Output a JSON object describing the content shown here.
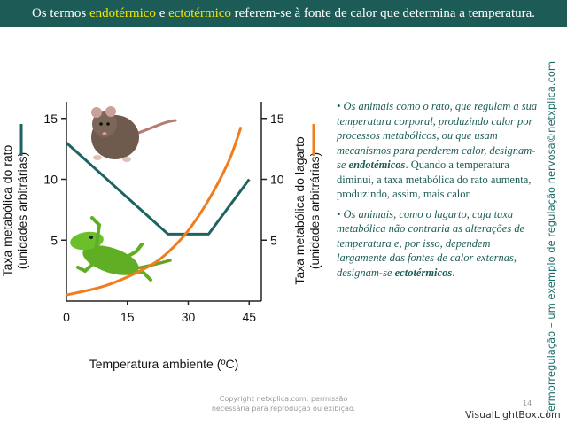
{
  "header": {
    "part1": "Os termos ",
    "term1": "endotérmico",
    "part2": " e ",
    "term2": "ectotérmico",
    "part3": " referem-se à fonte de calor que determina a temperatura."
  },
  "side_title": "Termorregulação – um exemplo de regulação nervosa©netxplica.com",
  "chart_data": {
    "type": "line",
    "xlabel": "Temperatura ambiente (ºC)",
    "x_ticks": [
      "0",
      "15",
      "30",
      "45"
    ],
    "xlim": [
      0,
      48
    ],
    "ylabel_left_1": "Taxa metabólica do rato",
    "ylabel_left_2": "(unidades arbitrárias)",
    "ylabel_right_1": "Taxa metabólica do lagarto",
    "ylabel_right_2": "(unidades arbitrárias)",
    "y_ticks_left": [
      "15",
      "10",
      "5"
    ],
    "y_ticks_right": [
      "15",
      "10",
      "5"
    ],
    "ylim": [
      0,
      16
    ],
    "series": [
      {
        "axis": "left",
        "color": "#1d6460",
        "x": [
          0,
          25,
          35,
          45
        ],
        "y": [
          13,
          5.5,
          5.5,
          10
        ]
      },
      {
        "axis": "right",
        "color": "#f07d1e",
        "x": [
          0,
          10,
          20,
          25,
          30,
          35,
          40,
          43
        ],
        "y": [
          0.5,
          1.3,
          2.8,
          4.0,
          5.8,
          8.3,
          11.5,
          14.3
        ]
      }
    ]
  },
  "text": {
    "b1_p1": "Os animais como o rato, que regulam a sua temperatura corporal, produzindo calor por processos metabólicos, ou que usam mecanismos para perderem calor, designam-se ",
    "b1_term": "endotémicos",
    "b1_p2": ". Quando a temperatura diminui, a taxa metabólica do rato aumenta, produzindo, assim, mais calor.",
    "b2_p1": "Os animais, como o lagarto, cuja taxa metabólica não contraria as alterações de temperatura e, por isso, dependem largamente das fontes de calor externas, designam-se ",
    "b2_term": "ectotérmicos",
    "b2_p2": "."
  },
  "footer": {
    "line1": "Copyright netxplica.com: permissão",
    "line2": "necessária para reprodução ou exibição.",
    "page": "14"
  },
  "watermark": "VisualLightBox.com"
}
